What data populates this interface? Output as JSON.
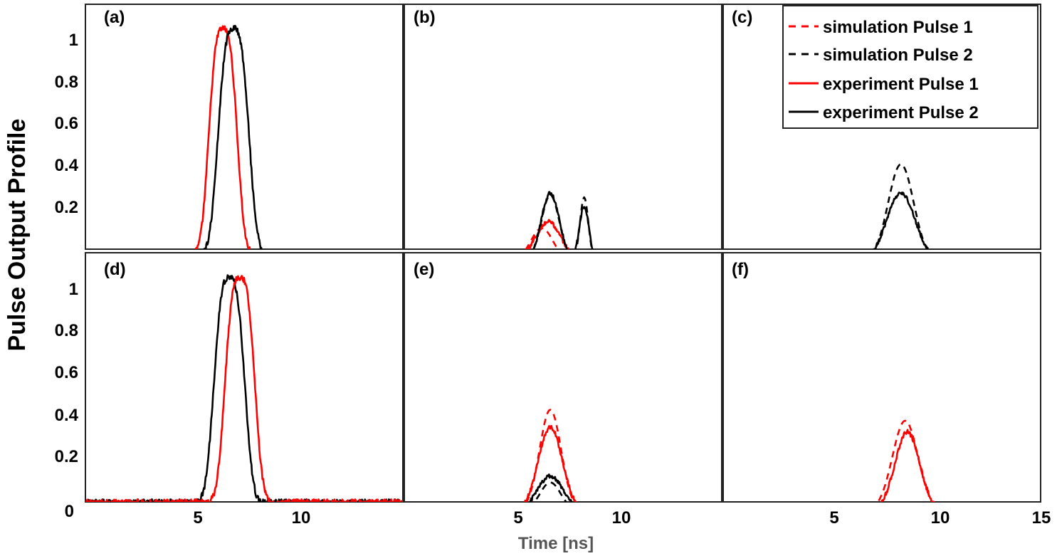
{
  "chart_data": {
    "type": "line",
    "ylabel": "Pulse Output Profile",
    "xlabel": "Time [ns]",
    "xlim": [
      0,
      15
    ],
    "ylim": [
      0,
      1.12
    ],
    "colors": {
      "pulse1": "#ff0000",
      "pulse2": "#000000"
    },
    "y_ticks": [
      "0.2",
      "0.4",
      "0.6",
      "0.8",
      "1"
    ],
    "y_origin_label": "0",
    "x_ticks_left": [
      "5",
      "10"
    ],
    "x_ticks_right": [
      "5",
      "10",
      "15"
    ],
    "legend": {
      "position": "top-right",
      "entries": [
        {
          "label": "simulation Pulse 1",
          "color": "#ff0000",
          "style": "dashed"
        },
        {
          "label": "simulation Pulse 2",
          "color": "#000000",
          "style": "dashed"
        },
        {
          "label": "experiment Pulse 1",
          "color": "#ff0000",
          "style": "solid"
        },
        {
          "label": "experiment Pulse 2",
          "color": "#000000",
          "style": "solid"
        }
      ]
    },
    "panels": [
      {
        "label": "(a)",
        "baseline": 0.035,
        "series": [
          {
            "name": "experiment Pulse 1",
            "color": "#ff0000",
            "style": "solid",
            "peaks": [
              {
                "center": 6.5,
                "amp": 1.02,
                "sigma": 0.78,
                "power": 3
              }
            ],
            "noise": 0.014
          },
          {
            "name": "experiment Pulse 2",
            "color": "#000000",
            "style": "solid",
            "peaks": [
              {
                "center": 7.0,
                "amp": 1.02,
                "sigma": 0.85,
                "power": 3
              }
            ],
            "noise": 0.014
          }
        ]
      },
      {
        "label": "(b)",
        "baseline": 0.0,
        "series": [
          {
            "name": "simulation Pulse 1",
            "color": "#ff0000",
            "style": "dashed",
            "peaks": [
              {
                "center": 6.5,
                "amp": 0.15,
                "sigma": 0.75,
                "power": 2
              }
            ],
            "noise": 0.0
          },
          {
            "name": "simulation Pulse 2",
            "color": "#000000",
            "style": "dashed",
            "peaks": [
              {
                "center": 6.9,
                "amp": 0.3,
                "sigma": 0.6,
                "power": 2
              },
              {
                "center": 8.5,
                "amp": 0.29,
                "sigma": 0.28,
                "power": 2
              }
            ],
            "noise": 0.0
          },
          {
            "name": "experiment Pulse 1",
            "color": "#ff0000",
            "style": "solid",
            "peaks": [
              {
                "center": 6.8,
                "amp": 0.18,
                "sigma": 0.85,
                "power": 2
              }
            ],
            "noise": 0.009
          },
          {
            "name": "experiment Pulse 2",
            "color": "#000000",
            "style": "solid",
            "peaks": [
              {
                "center": 6.9,
                "amp": 0.31,
                "sigma": 0.6,
                "power": 2
              },
              {
                "center": 8.5,
                "amp": 0.25,
                "sigma": 0.32,
                "power": 2
              }
            ],
            "noise": 0.009
          }
        ]
      },
      {
        "label": "(c)",
        "baseline": 0.0,
        "series": [
          {
            "name": "simulation Pulse 2",
            "color": "#000000",
            "style": "dashed",
            "peaks": [
              {
                "center": 8.4,
                "amp": 0.44,
                "sigma": 0.85,
                "power": 2
              }
            ],
            "noise": 0.0
          },
          {
            "name": "experiment Pulse 2",
            "color": "#000000",
            "style": "solid",
            "peaks": [
              {
                "center": 8.4,
                "amp": 0.31,
                "sigma": 0.95,
                "power": 2
              }
            ],
            "noise": 0.008
          }
        ]
      },
      {
        "label": "(d)",
        "baseline": 0.04,
        "series": [
          {
            "name": "experiment Pulse 2",
            "color": "#000000",
            "style": "solid",
            "peaks": [
              {
                "center": 6.8,
                "amp": 1.02,
                "sigma": 0.85,
                "power": 3
              }
            ],
            "noise": 0.014
          },
          {
            "name": "experiment Pulse 1",
            "color": "#ff0000",
            "style": "solid",
            "peaks": [
              {
                "center": 7.3,
                "amp": 1.02,
                "sigma": 0.82,
                "power": 3
              }
            ],
            "noise": 0.014
          }
        ]
      },
      {
        "label": "(e)",
        "baseline": 0.0,
        "series": [
          {
            "name": "simulation Pulse 1",
            "color": "#ff0000",
            "style": "dashed",
            "peaks": [
              {
                "center": 6.9,
                "amp": 0.46,
                "sigma": 0.72,
                "power": 2
              }
            ],
            "noise": 0.0
          },
          {
            "name": "simulation Pulse 2",
            "color": "#000000",
            "style": "dashed",
            "peaks": [
              {
                "center": 6.9,
                "amp": 0.13,
                "sigma": 0.7,
                "power": 2
              }
            ],
            "noise": 0.0
          },
          {
            "name": "experiment Pulse 1",
            "color": "#ff0000",
            "style": "solid",
            "peaks": [
              {
                "center": 6.9,
                "amp": 0.38,
                "sigma": 0.8,
                "power": 2
              }
            ],
            "noise": 0.009
          },
          {
            "name": "experiment Pulse 2",
            "color": "#000000",
            "style": "solid",
            "peaks": [
              {
                "center": 6.9,
                "amp": 0.16,
                "sigma": 0.85,
                "power": 2
              }
            ],
            "noise": 0.009
          }
        ]
      },
      {
        "label": "(f)",
        "baseline": 0.0,
        "series": [
          {
            "name": "simulation Pulse 1",
            "color": "#ff0000",
            "style": "dashed",
            "peaks": [
              {
                "center": 8.6,
                "amp": 0.41,
                "sigma": 0.85,
                "power": 2
              }
            ],
            "noise": 0.0
          },
          {
            "name": "experiment Pulse 1",
            "color": "#ff0000",
            "style": "solid",
            "peaks": [
              {
                "center": 8.7,
                "amp": 0.36,
                "sigma": 0.82,
                "power": 2
              }
            ],
            "noise": 0.01
          }
        ]
      }
    ]
  }
}
